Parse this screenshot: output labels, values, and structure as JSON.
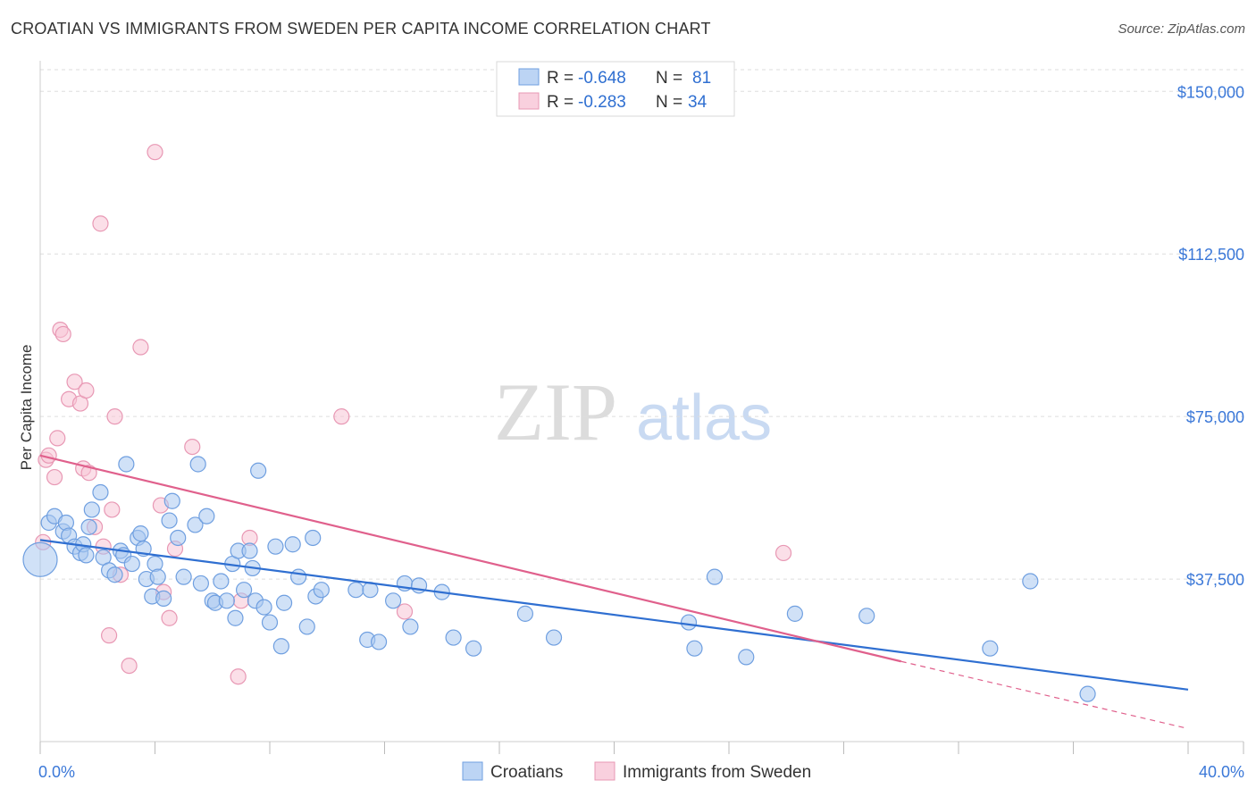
{
  "title": "CROATIAN VS IMMIGRANTS FROM SWEDEN PER CAPITA INCOME CORRELATION CHART",
  "source": "Source: ZipAtlas.com",
  "watermark": {
    "zip": "ZIP",
    "atlas": "atlas"
  },
  "colors": {
    "blue_fill": "#a9c8f0",
    "blue_stroke": "#6f9fe0",
    "blue_line": "#2f6fd1",
    "pink_fill": "#f7c5d6",
    "pink_stroke": "#e898b4",
    "pink_line": "#e0608c",
    "grid": "#dddddd",
    "axis_text": "#3b78d8"
  },
  "legend": {
    "rows": [
      {
        "r_label": "R =",
        "r_value": "-0.648",
        "n_label": "N =",
        "n_value": "81"
      },
      {
        "r_label": "R =",
        "r_value": "-0.283",
        "n_label": "N =",
        "n_value": "34"
      }
    ]
  },
  "chart_data": {
    "type": "scatter",
    "title": "CROATIAN VS IMMIGRANTS FROM SWEDEN PER CAPITA INCOME CORRELATION CHART",
    "xlabel": "",
    "ylabel": "Per Capita Income",
    "xlim": [
      0,
      40
    ],
    "ylim": [
      0,
      155000
    ],
    "x_tick_labels": [
      "0.0%",
      "40.0%"
    ],
    "y_ticks": [
      37500,
      75000,
      112500,
      150000
    ],
    "y_tick_labels": [
      "$37,500",
      "$75,000",
      "$112,500",
      "$150,000"
    ],
    "series": [
      {
        "name": "Croatians",
        "color": "#6f9fe0",
        "trend": {
          "x0": 0,
          "y0": 46500,
          "x1": 40,
          "y1": 12000
        },
        "points": [
          [
            0.0,
            42000
          ],
          [
            0.3,
            50500
          ],
          [
            0.5,
            52000
          ],
          [
            0.8,
            48500
          ],
          [
            0.9,
            50500
          ],
          [
            1.0,
            47500
          ],
          [
            1.2,
            45000
          ],
          [
            1.4,
            43500
          ],
          [
            1.5,
            45500
          ],
          [
            1.6,
            43000
          ],
          [
            1.7,
            49500
          ],
          [
            1.8,
            53500
          ],
          [
            2.1,
            57500
          ],
          [
            2.2,
            42500
          ],
          [
            2.4,
            39500
          ],
          [
            2.6,
            38500
          ],
          [
            2.8,
            44000
          ],
          [
            2.9,
            43000
          ],
          [
            3.0,
            64000
          ],
          [
            3.2,
            41000
          ],
          [
            3.4,
            47000
          ],
          [
            3.5,
            48000
          ],
          [
            3.6,
            44500
          ],
          [
            3.9,
            33500
          ],
          [
            3.7,
            37500
          ],
          [
            4.0,
            41000
          ],
          [
            4.1,
            38000
          ],
          [
            4.3,
            33000
          ],
          [
            4.5,
            51000
          ],
          [
            4.6,
            55500
          ],
          [
            4.8,
            47000
          ],
          [
            5.0,
            38000
          ],
          [
            5.4,
            50000
          ],
          [
            5.5,
            64000
          ],
          [
            5.6,
            36500
          ],
          [
            5.8,
            52000
          ],
          [
            6.0,
            32500
          ],
          [
            6.1,
            32000
          ],
          [
            6.3,
            37000
          ],
          [
            6.5,
            32500
          ],
          [
            6.7,
            41000
          ],
          [
            6.8,
            28500
          ],
          [
            6.9,
            44000
          ],
          [
            7.1,
            35000
          ],
          [
            7.3,
            44000
          ],
          [
            7.4,
            40000
          ],
          [
            7.5,
            32500
          ],
          [
            7.6,
            62500
          ],
          [
            7.8,
            31000
          ],
          [
            8.0,
            27500
          ],
          [
            8.2,
            45000
          ],
          [
            8.4,
            22000
          ],
          [
            8.5,
            32000
          ],
          [
            8.8,
            45500
          ],
          [
            9.0,
            38000
          ],
          [
            9.3,
            26500
          ],
          [
            9.5,
            47000
          ],
          [
            9.6,
            33500
          ],
          [
            9.8,
            35000
          ],
          [
            11.0,
            35000
          ],
          [
            11.4,
            23500
          ],
          [
            11.5,
            35000
          ],
          [
            11.8,
            23000
          ],
          [
            12.3,
            32500
          ],
          [
            12.7,
            36500
          ],
          [
            12.9,
            26500
          ],
          [
            13.2,
            36000
          ],
          [
            14.0,
            34500
          ],
          [
            14.4,
            24000
          ],
          [
            15.1,
            21500
          ],
          [
            16.9,
            29500
          ],
          [
            17.9,
            24000
          ],
          [
            22.6,
            27500
          ],
          [
            22.8,
            21500
          ],
          [
            23.5,
            38000
          ],
          [
            24.6,
            19500
          ],
          [
            26.3,
            29500
          ],
          [
            28.8,
            29000
          ],
          [
            33.1,
            21500
          ],
          [
            34.5,
            37000
          ],
          [
            36.5,
            11000
          ]
        ]
      },
      {
        "name": "Immigrants from Sweden",
        "color": "#e898b4",
        "trend": {
          "x0": 0,
          "y0": 66000,
          "x1": 30,
          "y1": 18500
        },
        "trend_dashed": {
          "x0": 30,
          "y0": 18500,
          "x1": 40,
          "y1": 3000
        },
        "points": [
          [
            0.1,
            46000
          ],
          [
            0.2,
            65000
          ],
          [
            0.3,
            66000
          ],
          [
            0.5,
            61000
          ],
          [
            0.6,
            70000
          ],
          [
            0.7,
            95000
          ],
          [
            0.8,
            94000
          ],
          [
            1.0,
            79000
          ],
          [
            1.2,
            83000
          ],
          [
            1.4,
            78000
          ],
          [
            1.5,
            63000
          ],
          [
            1.6,
            81000
          ],
          [
            1.7,
            62000
          ],
          [
            1.9,
            49500
          ],
          [
            2.1,
            119500
          ],
          [
            2.2,
            45000
          ],
          [
            2.4,
            24500
          ],
          [
            2.5,
            53500
          ],
          [
            2.6,
            75000
          ],
          [
            2.8,
            38500
          ],
          [
            3.1,
            17500
          ],
          [
            3.5,
            91000
          ],
          [
            4.0,
            136000
          ],
          [
            4.2,
            54500
          ],
          [
            4.3,
            34500
          ],
          [
            4.5,
            28500
          ],
          [
            4.7,
            44500
          ],
          [
            5.3,
            68000
          ],
          [
            6.9,
            15000
          ],
          [
            7.0,
            32500
          ],
          [
            7.3,
            47000
          ],
          [
            10.5,
            75000
          ],
          [
            12.7,
            30000
          ],
          [
            25.9,
            43500
          ]
        ]
      }
    ]
  }
}
